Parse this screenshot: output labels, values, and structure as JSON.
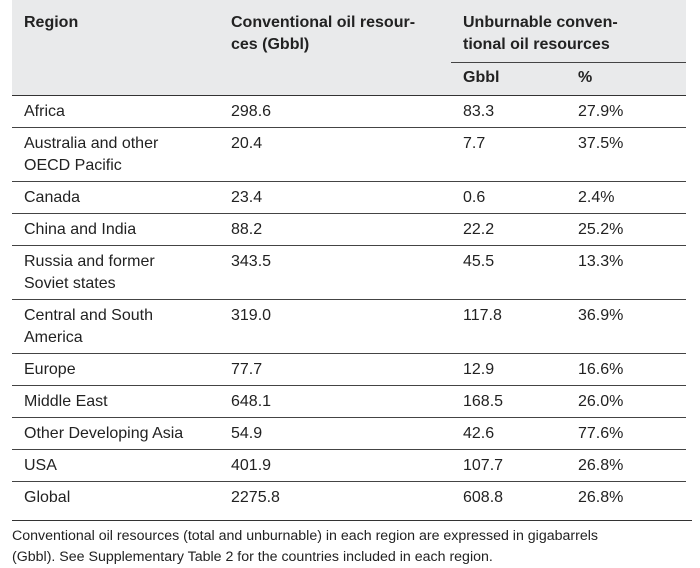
{
  "table": {
    "headers": {
      "region": "Region",
      "conventional_line1": "Conventional oil resour-",
      "conventional_line2": "ces (Gbbl)",
      "unburnable_line1": "Unburnable conven-",
      "unburnable_line2": "tional oil resources",
      "sub_gbbl": "Gbbl",
      "sub_percent": "%"
    },
    "rows": [
      {
        "region_line1": "Africa",
        "region_line2": "",
        "conventional": "298.6",
        "gbbl": "83.3",
        "percent": "27.9%"
      },
      {
        "region_line1": "Australia and other",
        "region_line2": "OECD Pacific",
        "conventional": "20.4",
        "gbbl": "7.7",
        "percent": "37.5%"
      },
      {
        "region_line1": "Canada",
        "region_line2": "",
        "conventional": "23.4",
        "gbbl": "0.6",
        "percent": "2.4%"
      },
      {
        "region_line1": "China and India",
        "region_line2": "",
        "conventional": "88.2",
        "gbbl": "22.2",
        "percent": "25.2%"
      },
      {
        "region_line1": "Russia and former",
        "region_line2": "Soviet states",
        "conventional": "343.5",
        "gbbl": "45.5",
        "percent": "13.3%"
      },
      {
        "region_line1": "Central and South",
        "region_line2": "America",
        "conventional": "319.0",
        "gbbl": "117.8",
        "percent": "36.9%"
      },
      {
        "region_line1": "Europe",
        "region_line2": "",
        "conventional": "77.7",
        "gbbl": "12.9",
        "percent": "16.6%"
      },
      {
        "region_line1": "Middle East",
        "region_line2": "",
        "conventional": "648.1",
        "gbbl": "168.5",
        "percent": "26.0%"
      },
      {
        "region_line1": "Other Developing Asia",
        "region_line2": "",
        "conventional": "54.9",
        "gbbl": "42.6",
        "percent": "77.6%"
      },
      {
        "region_line1": "USA",
        "region_line2": "",
        "conventional": "401.9",
        "gbbl": "107.7",
        "percent": "26.8%"
      },
      {
        "region_line1": "Global",
        "region_line2": "",
        "conventional": "2275.8",
        "gbbl": "608.8",
        "percent": "26.8%"
      }
    ]
  },
  "footnote": {
    "line1": "Conventional oil resources (total and unburnable) in each region are expressed in gigabarrels",
    "line2": "(Gbbl). See Supplementary Table 2 for the countries included in each region."
  },
  "colors": {
    "header_bg": "#e9eaeb",
    "rule": "#444444",
    "text": "#222222"
  }
}
